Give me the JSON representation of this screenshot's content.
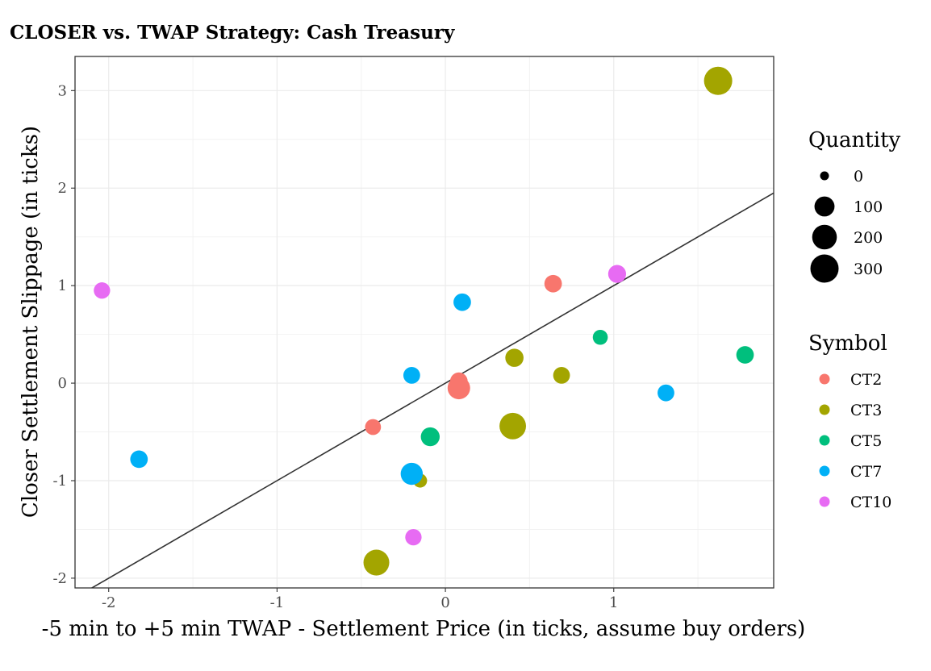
{
  "chart_data": {
    "type": "scatter",
    "title": "CLOSER vs. TWAP Strategy: Cash Treasury",
    "xlabel": "-5 min to +5 min TWAP - Settlement Price (in ticks, assume buy orders)",
    "ylabel": "Closer Settlement Slippage (in ticks)",
    "xlim": [
      -2.2,
      1.95
    ],
    "ylim": [
      -2.1,
      3.35
    ],
    "x_ticks": [
      -2,
      -1,
      0,
      1
    ],
    "x_tick_labels": [
      "-2",
      "-1",
      "0",
      "1"
    ],
    "y_ticks": [
      -2,
      -1,
      0,
      1,
      2,
      3
    ],
    "y_tick_labels": [
      "-2",
      "-1",
      "0",
      "1",
      "2",
      "3"
    ],
    "grid": true,
    "reference_line": {
      "slope": 1,
      "intercept": 0
    },
    "size_legend": {
      "title": "Quantity",
      "values": [
        0,
        100,
        200,
        300
      ],
      "labels": [
        "0",
        "100",
        "200",
        "300"
      ]
    },
    "color_legend": {
      "title": "Symbol",
      "placement": "right"
    },
    "series": [
      {
        "name": "CT2",
        "color": "#F8766D",
        "points": [
          {
            "x": 0.64,
            "y": 1.02,
            "q": 60
          },
          {
            "x": 0.08,
            "y": 0.02,
            "q": 60
          },
          {
            "x": 0.08,
            "y": -0.05,
            "q": 150
          },
          {
            "x": -0.43,
            "y": -0.45,
            "q": 40
          }
        ]
      },
      {
        "name": "CT3",
        "color": "#A3A500",
        "points": [
          {
            "x": 1.62,
            "y": 3.1,
            "q": 300
          },
          {
            "x": 0.41,
            "y": 0.26,
            "q": 70
          },
          {
            "x": 0.69,
            "y": 0.08,
            "q": 50
          },
          {
            "x": 0.4,
            "y": -0.44,
            "q": 250
          },
          {
            "x": -0.15,
            "y": -1.0,
            "q": 20
          },
          {
            "x": -0.41,
            "y": -1.84,
            "q": 230
          }
        ]
      },
      {
        "name": "CT5",
        "color": "#00BF7D",
        "points": [
          {
            "x": 0.92,
            "y": 0.47,
            "q": 30
          },
          {
            "x": 1.78,
            "y": 0.29,
            "q": 60
          },
          {
            "x": -0.09,
            "y": -0.55,
            "q": 80
          }
        ]
      },
      {
        "name": "CT7",
        "color": "#00B0F6",
        "points": [
          {
            "x": 0.1,
            "y": 0.83,
            "q": 60
          },
          {
            "x": -0.2,
            "y": 0.08,
            "q": 50
          },
          {
            "x": 1.31,
            "y": -0.1,
            "q": 50
          },
          {
            "x": -1.82,
            "y": -0.78,
            "q": 60
          },
          {
            "x": -0.2,
            "y": -0.93,
            "q": 140
          }
        ]
      },
      {
        "name": "CT10",
        "color": "#E76BF3",
        "points": [
          {
            "x": -2.04,
            "y": 0.95,
            "q": 45
          },
          {
            "x": 1.02,
            "y": 1.12,
            "q": 65
          },
          {
            "x": -0.19,
            "y": -1.58,
            "q": 45
          }
        ]
      }
    ]
  }
}
